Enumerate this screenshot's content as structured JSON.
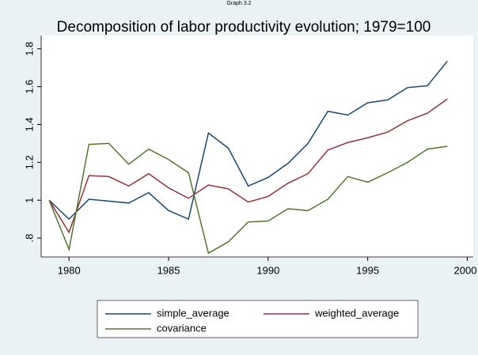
{
  "chart_data": {
    "type": "line",
    "caption": "Graph 3.2",
    "title": "Decomposition of labor productivity evolution; 1979=100",
    "x": [
      1979,
      1980,
      1981,
      1982,
      1983,
      1984,
      1985,
      1986,
      1987,
      1988,
      1989,
      1990,
      1991,
      1992,
      1993,
      1994,
      1995,
      1996,
      1997,
      1998,
      1999
    ],
    "series": [
      {
        "name": "simple_average",
        "color": "#1a476f",
        "values": [
          1.0,
          0.9,
          1.005,
          0.995,
          0.985,
          1.04,
          0.945,
          0.9,
          1.355,
          1.275,
          1.075,
          1.12,
          1.195,
          1.3,
          1.47,
          1.45,
          1.515,
          1.53,
          1.595,
          1.605,
          1.735
        ]
      },
      {
        "name": "weighted_average",
        "color": "#90353b",
        "values": [
          1.0,
          0.83,
          1.13,
          1.125,
          1.075,
          1.14,
          1.065,
          1.01,
          1.08,
          1.06,
          0.99,
          1.02,
          1.09,
          1.14,
          1.265,
          1.305,
          1.33,
          1.36,
          1.42,
          1.46,
          1.535
        ]
      },
      {
        "name": "covariance",
        "color": "#55752f",
        "values": [
          1.0,
          0.74,
          1.295,
          1.3,
          1.19,
          1.27,
          1.215,
          1.145,
          0.72,
          0.78,
          0.885,
          0.89,
          0.955,
          0.945,
          1.005,
          1.125,
          1.095,
          1.145,
          1.2,
          1.27,
          1.285
        ]
      }
    ],
    "xlim": [
      1978.6,
      2000.3
    ],
    "xticks": [
      1980,
      1985,
      1990,
      1995,
      2000
    ],
    "ylim": [
      0.7,
      1.87
    ],
    "yticks": [
      {
        "value": 0.8,
        "label": ".8"
      },
      1,
      1.2,
      1.4,
      1.6,
      1.8
    ],
    "grid": false
  }
}
